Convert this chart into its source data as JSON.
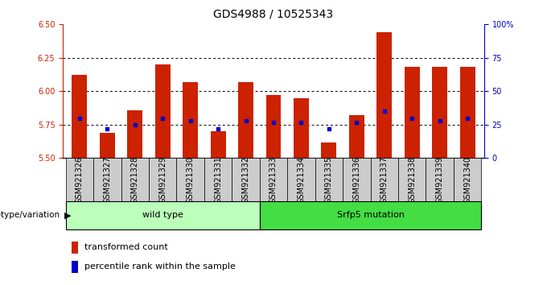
{
  "title": "GDS4988 / 10525343",
  "samples": [
    "GSM921326",
    "GSM921327",
    "GSM921328",
    "GSM921329",
    "GSM921330",
    "GSM921331",
    "GSM921332",
    "GSM921333",
    "GSM921334",
    "GSM921335",
    "GSM921336",
    "GSM921337",
    "GSM921338",
    "GSM921339",
    "GSM921340"
  ],
  "bar_values": [
    6.12,
    5.69,
    5.86,
    6.2,
    6.07,
    5.7,
    6.07,
    5.97,
    5.95,
    5.62,
    5.82,
    6.44,
    6.18,
    6.18,
    6.18
  ],
  "percentile_values": [
    30,
    22,
    25,
    30,
    28,
    22,
    28,
    27,
    27,
    22,
    27,
    35,
    30,
    28,
    30
  ],
  "bar_baseline": 5.5,
  "ylim_left": [
    5.5,
    6.5
  ],
  "ylim_right": [
    0,
    100
  ],
  "yticks_left": [
    5.5,
    5.75,
    6.0,
    6.25,
    6.5
  ],
  "yticks_right": [
    0,
    25,
    50,
    75,
    100
  ],
  "grid_values": [
    5.75,
    6.0,
    6.25
  ],
  "bar_color": "#cc2200",
  "percentile_color": "#0000cc",
  "groups": [
    {
      "label": "wild type",
      "start": 0,
      "end": 7,
      "color": "#bbffbb"
    },
    {
      "label": "Srfp5 mutation",
      "start": 7,
      "end": 15,
      "color": "#44dd44"
    }
  ],
  "group_label": "genotype/variation",
  "legend_items": [
    {
      "color": "#cc2200",
      "label": "transformed count"
    },
    {
      "color": "#0000cc",
      "label": "percentile rank within the sample"
    }
  ],
  "title_fontsize": 10,
  "tick_fontsize": 7,
  "axis_color_left": "#cc2200",
  "axis_color_right": "#0000cc",
  "bar_width": 0.55,
  "bg_color": "#cccccc"
}
